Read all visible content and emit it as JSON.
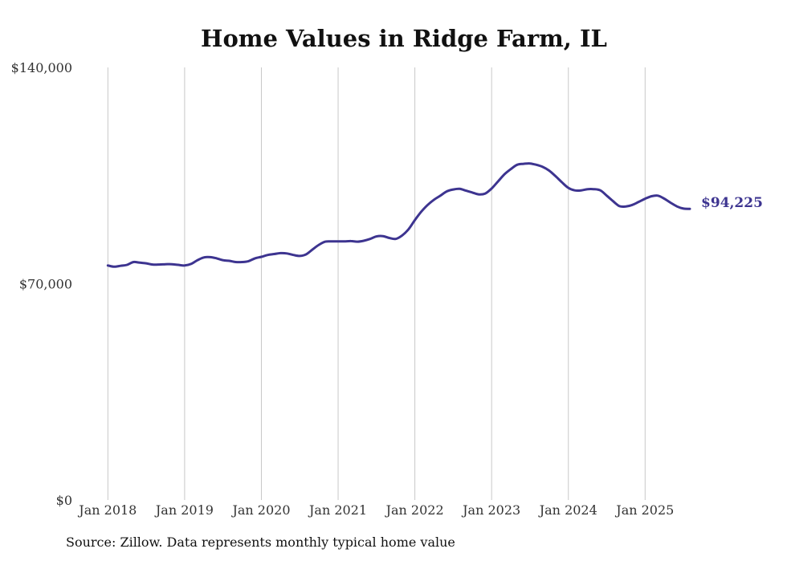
{
  "chart_data": {
    "type": "line",
    "title": "Home Values in Ridge Farm, IL",
    "xlabel": "",
    "ylabel": "",
    "ylim": [
      0,
      140000
    ],
    "y_ticks": [
      0,
      70000,
      140000
    ],
    "y_tick_labels": [
      "$0",
      "$70,000",
      "$140,000"
    ],
    "x_ticks": [
      2018,
      2019,
      2020,
      2021,
      2022,
      2023,
      2024,
      2025
    ],
    "x_tick_labels": [
      "Jan 2018",
      "Jan 2019",
      "Jan 2020",
      "Jan 2021",
      "Jan 2022",
      "Jan 2023",
      "Jan 2024",
      "Jan 2025"
    ],
    "xlim": [
      2017.85,
      2025.75
    ],
    "grid": "vertical",
    "line_color": "#3d3490",
    "series": [
      {
        "name": "Typical home value",
        "x": [
          2018.0,
          2018.083,
          2018.167,
          2018.25,
          2018.333,
          2018.417,
          2018.5,
          2018.583,
          2018.667,
          2018.75,
          2018.833,
          2018.917,
          2019.0,
          2019.083,
          2019.167,
          2019.25,
          2019.333,
          2019.417,
          2019.5,
          2019.583,
          2019.667,
          2019.75,
          2019.833,
          2019.917,
          2020.0,
          2020.083,
          2020.167,
          2020.25,
          2020.333,
          2020.417,
          2020.5,
          2020.583,
          2020.667,
          2020.75,
          2020.833,
          2020.917,
          2021.0,
          2021.083,
          2021.167,
          2021.25,
          2021.333,
          2021.417,
          2021.5,
          2021.583,
          2021.667,
          2021.75,
          2021.833,
          2021.917,
          2022.0,
          2022.083,
          2022.167,
          2022.25,
          2022.333,
          2022.417,
          2022.5,
          2022.583,
          2022.667,
          2022.75,
          2022.833,
          2022.917,
          2023.0,
          2023.083,
          2023.167,
          2023.25,
          2023.333,
          2023.417,
          2023.5,
          2023.583,
          2023.667,
          2023.75,
          2023.833,
          2023.917,
          2024.0,
          2024.083,
          2024.167,
          2024.25,
          2024.333,
          2024.417,
          2024.5,
          2024.583,
          2024.667,
          2024.75,
          2024.833,
          2024.917,
          2025.0,
          2025.083,
          2025.167,
          2025.25,
          2025.333,
          2025.417,
          2025.5,
          2025.583
        ],
        "values": [
          75900,
          75500,
          75800,
          76100,
          77000,
          76800,
          76600,
          76200,
          76200,
          76300,
          76300,
          76100,
          75900,
          76400,
          77600,
          78500,
          78600,
          78200,
          77600,
          77400,
          77000,
          77000,
          77300,
          78200,
          78700,
          79300,
          79600,
          79900,
          79800,
          79300,
          79000,
          79500,
          81100,
          82600,
          83600,
          83700,
          83700,
          83700,
          83800,
          83600,
          83900,
          84500,
          85300,
          85400,
          84800,
          84500,
          85600,
          87600,
          90600,
          93300,
          95500,
          97200,
          98500,
          99900,
          100500,
          100700,
          100100,
          99500,
          98900,
          99200,
          100800,
          103100,
          105400,
          107100,
          108500,
          108800,
          108900,
          108500,
          107800,
          106600,
          104800,
          102800,
          101000,
          100200,
          100200,
          100600,
          100600,
          100200,
          98500,
          96700,
          95100,
          95000,
          95500,
          96500,
          97500,
          98300,
          98500,
          97500,
          96200,
          95000,
          94300,
          94225
        ]
      }
    ],
    "end_label": "$94,225"
  },
  "footer": {
    "source": "Source: Zillow. Data represents monthly typical home value"
  }
}
